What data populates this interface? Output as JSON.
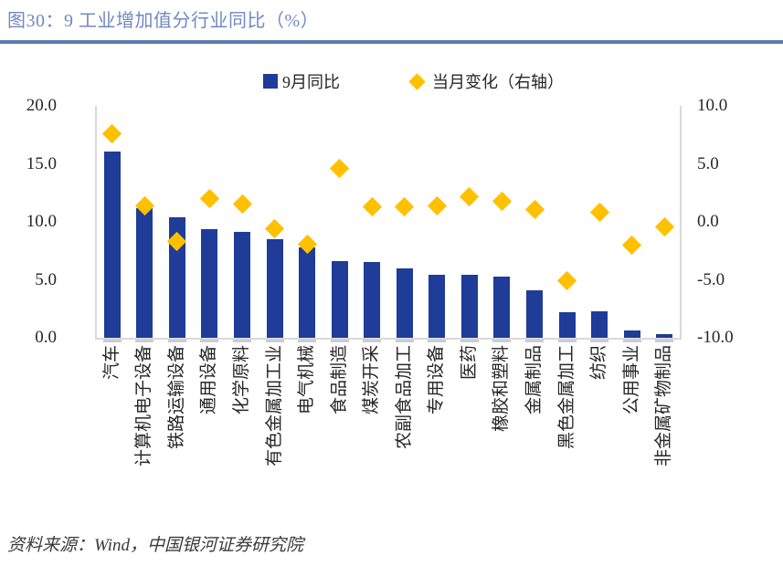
{
  "title": "图30：9 工业增加值分行业同比（%）",
  "legend": {
    "bar_label": "9月同比",
    "diamond_label": "当月变化（右轴）"
  },
  "footer": {
    "source": "资料来源：Wind，中国银河证券研究院"
  },
  "colors": {
    "bar": "#1E3C98",
    "diamond": "#FFC000",
    "title": "#7189C0",
    "rule": "#5C79AE",
    "axis_line": "#D9D9D9",
    "bar_base": "#C9CBD8",
    "text": "#262626"
  },
  "chart_data": {
    "type": "bar",
    "subtype": "bar-with-scatter-overlay",
    "title": "图30：9 工业增加值分行业同比（%）",
    "legend_position": "top",
    "grid": false,
    "categories": [
      "汽车",
      "计算机电子设备",
      "铁路运输设备",
      "通用设备",
      "化学原料",
      "有色金属加工业",
      "电气机械",
      "食品制造",
      "煤炭开采",
      "农副食品加工",
      "专用设备",
      "医药",
      "橡胶和塑料",
      "金属制品",
      "黑色金属加工",
      "纺织",
      "公用事业",
      "非金属矿物制品"
    ],
    "series": [
      {
        "name": "9月同比",
        "type": "bar",
        "axis": "left",
        "values": [
          16.1,
          11.2,
          10.4,
          9.4,
          9.1,
          8.5,
          7.8,
          6.6,
          6.5,
          6.0,
          5.4,
          5.4,
          5.3,
          4.1,
          2.2,
          2.3,
          0.6,
          0.3
        ]
      },
      {
        "name": "当月变化（右轴）",
        "type": "scatter",
        "marker": "diamond",
        "axis": "right",
        "values": [
          7.6,
          1.4,
          -1.7,
          2.0,
          1.5,
          -0.6,
          -1.9,
          4.6,
          1.3,
          1.3,
          1.4,
          2.2,
          1.8,
          1.1,
          -5.1,
          0.8,
          -2.0,
          -0.4
        ]
      }
    ],
    "left_axis": {
      "min": 0,
      "max": 20,
      "tick_labels": [
        "20.0",
        "15.0",
        "10.0",
        "5.0",
        "0.0"
      ]
    },
    "right_axis": {
      "min": -10,
      "max": 10,
      "tick_labels": [
        "10.0",
        "5.0",
        "0.0",
        "-5.0",
        "-10.0"
      ]
    }
  }
}
